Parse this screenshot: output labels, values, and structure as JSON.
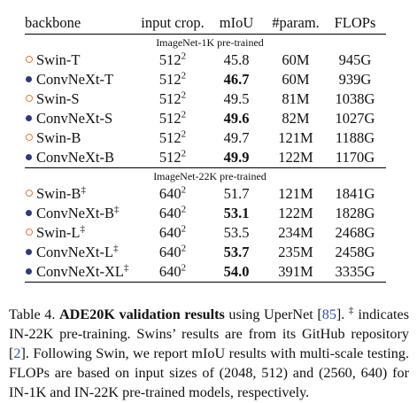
{
  "headers": {
    "backbone": "backbone",
    "input_crop": "input crop.",
    "miou": "mIoU",
    "params": "#param.",
    "flops": "FLOPs"
  },
  "sections": [
    {
      "label": "ImageNet-1K pre-trained",
      "rows": [
        {
          "marker": "open",
          "name": "Swin-T",
          "sup": "",
          "crop_base": "512",
          "crop_exp": "2",
          "miou": "45.8",
          "bold": false,
          "params": "60M",
          "flops": "945G"
        },
        {
          "marker": "filled",
          "name": "ConvNeXt-T",
          "sup": "",
          "crop_base": "512",
          "crop_exp": "2",
          "miou": "46.7",
          "bold": true,
          "params": "60M",
          "flops": "939G"
        },
        {
          "marker": "open",
          "name": "Swin-S",
          "sup": "",
          "crop_base": "512",
          "crop_exp": "2",
          "miou": "49.5",
          "bold": false,
          "params": "81M",
          "flops": "1038G"
        },
        {
          "marker": "filled",
          "name": "ConvNeXt-S",
          "sup": "",
          "crop_base": "512",
          "crop_exp": "2",
          "miou": "49.6",
          "bold": true,
          "params": "82M",
          "flops": "1027G"
        },
        {
          "marker": "open",
          "name": "Swin-B",
          "sup": "",
          "crop_base": "512",
          "crop_exp": "2",
          "miou": "49.7",
          "bold": false,
          "params": "121M",
          "flops": "1188G"
        },
        {
          "marker": "filled",
          "name": "ConvNeXt-B",
          "sup": "",
          "crop_base": "512",
          "crop_exp": "2",
          "miou": "49.9",
          "bold": true,
          "params": "122M",
          "flops": "1170G"
        }
      ]
    },
    {
      "label": "ImageNet-22K pre-trained",
      "rows": [
        {
          "marker": "open",
          "name": "Swin-B",
          "sup": "‡",
          "crop_base": "640",
          "crop_exp": "2",
          "miou": "51.7",
          "bold": false,
          "params": "121M",
          "flops": "1841G"
        },
        {
          "marker": "filled",
          "name": "ConvNeXt-B",
          "sup": "‡",
          "crop_base": "640",
          "crop_exp": "2",
          "miou": "53.1",
          "bold": true,
          "params": "122M",
          "flops": "1828G"
        },
        {
          "marker": "open",
          "name": "Swin-L",
          "sup": "‡",
          "crop_base": "640",
          "crop_exp": "2",
          "miou": "53.5",
          "bold": false,
          "params": "234M",
          "flops": "2468G"
        },
        {
          "marker": "filled",
          "name": "ConvNeXt-L",
          "sup": "‡",
          "crop_base": "640",
          "crop_exp": "2",
          "miou": "53.7",
          "bold": true,
          "params": "235M",
          "flops": "2458G"
        },
        {
          "marker": "filled",
          "name": "ConvNeXt-XL",
          "sup": "‡",
          "crop_base": "640",
          "crop_exp": "2",
          "miou": "54.0",
          "bold": true,
          "params": "391M",
          "flops": "3335G"
        }
      ]
    }
  ],
  "caption": {
    "prefix": "Table 4. ",
    "bold_title": "ADE20K validation results",
    "p1": " using UperNet [",
    "cite1": "85",
    "p2": "]. ",
    "dagger": "‡",
    "p3": " indicates IN-22K pre-training. Swins’ results are from its GitHub repository [",
    "cite2": "2",
    "p4": "]. Following Swin, we report mIoU results with multi-scale testing. FLOPs are based on input sizes of (2048, 512) and (2560, 640) for IN-1K and IN-22K pre-trained models, respectively."
  },
  "colors": {
    "open_marker": "#e07a3a",
    "filled_marker": "#2e3a7a",
    "citation": "#2e5aa8"
  }
}
